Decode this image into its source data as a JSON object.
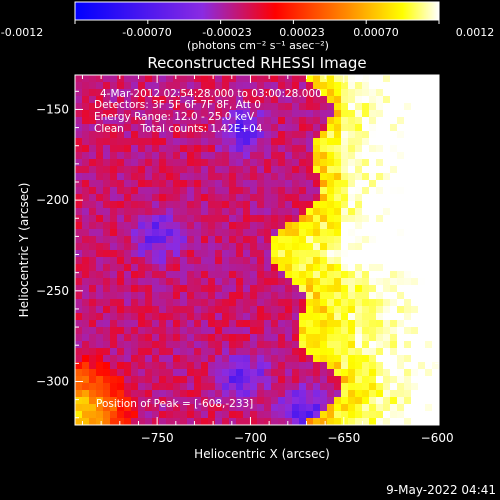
{
  "colorbar": {
    "ticks": [
      "-0.0012",
      "-0.00070",
      "-0.00023",
      "0.00023",
      "0.00070",
      "0.0012"
    ],
    "units": "(photons cm⁻² s⁻¹ asec⁻²)"
  },
  "info": {
    "line1": "4-Mar-2012 02:54:28.000 to 03:00:28.000",
    "line2": "Detectors: 3F 5F 6F 7F 8F, Att 0",
    "line3": "Energy Range: 12.0 - 25.0 keV",
    "line4": "Clean     Total counts: 1.42E+04",
    "peak": "Position of Peak = [-608,-233]"
  },
  "footer_date": "9-May-2022 04:41",
  "chart_data": {
    "type": "heatmap",
    "title": "Reconstructed RHESSI Image",
    "xlabel": "Heliocentric X (arcsec)",
    "ylabel": "Heliocentric Y (arcsec)",
    "xlim": [
      -794,
      -599
    ],
    "ylim": [
      -324,
      -131
    ],
    "xticks": [
      -750,
      -700,
      -650,
      -600
    ],
    "yticks": [
      -150,
      -200,
      -250,
      -300
    ],
    "xticklabels": [
      "−750",
      "−700",
      "−650",
      "−600"
    ],
    "yticklabels": [
      "−150",
      "−200",
      "−250",
      "−300"
    ],
    "zrange": [
      -0.0012,
      0.0012
    ],
    "peak": {
      "x": -608,
      "y": -233
    },
    "colormap": [
      "#0000ff",
      "#8a2be2",
      "#ff0000",
      "#ff8c00",
      "#ffff00",
      "#ffffff"
    ]
  }
}
